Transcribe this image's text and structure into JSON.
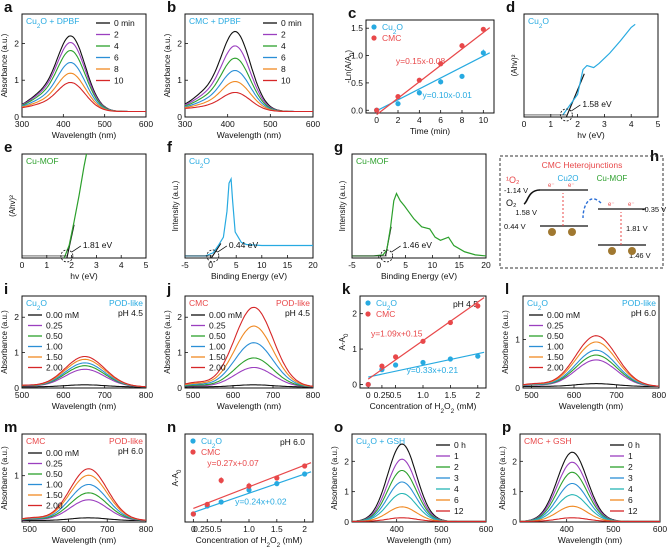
{
  "chart_data": [
    {
      "id": "a",
      "type": "line",
      "title": "Cu2O + DPBF",
      "title_color": "#27aae1",
      "xlabel": "Wavelength (nm)",
      "ylabel": "Absorbance (a.u.)",
      "xlim": [
        300,
        600
      ],
      "ylim": [
        0,
        2.8
      ],
      "xticks": [
        300,
        400,
        500,
        600
      ],
      "yticks": [
        0,
        1,
        2
      ],
      "legend": {
        "position": "top-right",
        "entries": [
          "0 min",
          "2",
          "4",
          "6",
          "8",
          "10"
        ]
      },
      "series": [
        {
          "name": "0 min",
          "color": "#111111",
          "peak": 2.42,
          "base": 0.15
        },
        {
          "name": "2",
          "color": "#9b3fbf",
          "peak": 2.22,
          "base": 0.15
        },
        {
          "name": "4",
          "color": "#2ca02c",
          "peak": 1.98,
          "base": 0.15
        },
        {
          "name": "6",
          "color": "#2b8fd6",
          "peak": 1.62,
          "base": 0.15
        },
        {
          "name": "8",
          "color": "#f08a24",
          "peak": 1.3,
          "base": 0.15
        },
        {
          "name": "10",
          "color": "#d62728",
          "peak": 1.02,
          "base": 0.15
        }
      ],
      "shape": "dpbf"
    },
    {
      "id": "b",
      "type": "line",
      "title": "CMC + DPBF",
      "title_color": "#27aae1",
      "xlabel": "Wavelength (nm)",
      "ylabel": "Absorbance (a.u.)",
      "xlim": [
        300,
        600
      ],
      "ylim": [
        0,
        2.8
      ],
      "xticks": [
        300,
        400,
        500,
        600
      ],
      "yticks": [
        0,
        1,
        2
      ],
      "legend": {
        "position": "top-right",
        "entries": [
          "0 min",
          "2",
          "4",
          "6",
          "8",
          "10"
        ]
      },
      "series": [
        {
          "name": "0 min",
          "color": "#111111",
          "peak": 2.55,
          "base": 0.15
        },
        {
          "name": "2",
          "color": "#9b3fbf",
          "peak": 2.12,
          "base": 0.15
        },
        {
          "name": "4",
          "color": "#2ca02c",
          "peak": 1.75,
          "base": 0.15
        },
        {
          "name": "6",
          "color": "#2b8fd6",
          "peak": 1.38,
          "base": 0.15
        },
        {
          "name": "8",
          "color": "#f08a24",
          "peak": 1.05,
          "base": 0.15
        },
        {
          "name": "10",
          "color": "#d62728",
          "peak": 0.72,
          "base": 0.15
        }
      ],
      "shape": "dpbf"
    },
    {
      "id": "c",
      "type": "scatter",
      "title": "",
      "xlabel": "Time (min)",
      "ylabel": "-Ln(A/A0)",
      "xlim": [
        -1,
        11
      ],
      "ylim": [
        -0.05,
        1.65
      ],
      "xticks": [
        0,
        2,
        4,
        6,
        8,
        10
      ],
      "yticks": [
        0.0,
        0.5,
        1.0,
        1.5
      ],
      "legend": {
        "position": "top-left",
        "entries": [
          "Cu2O",
          "CMC"
        ]
      },
      "series": [
        {
          "name": "Cu2O",
          "color": "#27aae1",
          "x": [
            0,
            2,
            4,
            6,
            8,
            10
          ],
          "y": [
            0.0,
            0.12,
            0.32,
            0.52,
            0.62,
            1.05
          ],
          "err": [
            0.02,
            0.04,
            0.05,
            0.05,
            0.04,
            0.06
          ],
          "fit_text": "y=0.10x-0.01",
          "slope": 0.1,
          "intercept": -0.01
        },
        {
          "name": "CMC",
          "color": "#e8484a",
          "x": [
            0,
            2,
            4,
            6,
            8,
            10
          ],
          "y": [
            0.0,
            0.25,
            0.55,
            0.85,
            1.18,
            1.48
          ],
          "err": [
            0.02,
            0.03,
            0.04,
            0.04,
            0.05,
            0.04
          ],
          "fit_text": "y=0.15x-0.08",
          "slope": 0.15,
          "intercept": -0.08
        }
      ]
    },
    {
      "id": "d",
      "type": "line",
      "title": "Cu2O",
      "title_color": "#27aae1",
      "xlabel": "hv (eV)",
      "ylabel": "(Ahv)²",
      "xlim": [
        0,
        5
      ],
      "ylim": [
        0,
        1
      ],
      "xticks": [
        0,
        1,
        2,
        3,
        4,
        5
      ],
      "yticks": [],
      "annotation": "1.58 eV",
      "intercept_x": 1.58,
      "line_color": "#27aae1"
    },
    {
      "id": "e",
      "type": "line",
      "title": "Cu-MOF",
      "title_color": "#2ca02c",
      "xlabel": "hv (eV)",
      "ylabel": "(Ahv)²",
      "xlim": [
        0,
        5
      ],
      "ylim": [
        0,
        1
      ],
      "xticks": [
        0,
        1,
        2,
        3,
        4,
        5
      ],
      "yticks": [],
      "annotation": "1.81 eV",
      "intercept_x": 1.81,
      "line_color": "#2ca02c"
    },
    {
      "id": "f",
      "type": "line",
      "title": "Cu2O",
      "title_color": "#27aae1",
      "xlabel": "Binding Energy (eV)",
      "ylabel": "Intensity (a.u.)",
      "xlim": [
        -5,
        20
      ],
      "ylim": [
        0,
        1
      ],
      "xticks": [
        -5,
        0,
        5,
        10,
        15,
        20
      ],
      "yticks": [],
      "annotation": "0.44 eV",
      "intercept_x": 0.44,
      "line_color": "#27aae1"
    },
    {
      "id": "g",
      "type": "line",
      "title": "Cu-MOF",
      "title_color": "#2ca02c",
      "xlabel": "Binding Energy (eV)",
      "ylabel": "Intensity (a.u.)",
      "xlim": [
        -5,
        20
      ],
      "ylim": [
        0,
        1
      ],
      "xticks": [
        -5,
        0,
        5,
        10,
        15,
        20
      ],
      "yticks": [],
      "annotation": "1.46 eV",
      "intercept_x": 1.46,
      "line_color": "#2ca02c"
    },
    {
      "id": "i",
      "type": "line",
      "title": "Cu2O",
      "title_color": "#27aae1",
      "tag": "POD-like",
      "tag_color": "#27aae1",
      "ph": "pH 4.5",
      "xlabel": "Wavelength (nm)",
      "ylabel": "Absorbance (a.u.)",
      "xlim": [
        500,
        800
      ],
      "ylim": [
        0,
        2.6
      ],
      "xticks": [
        500,
        600,
        700,
        800
      ],
      "yticks": [
        0,
        1,
        2
      ],
      "legend": {
        "position": "top-left",
        "entries": [
          "0.00 mM",
          "0.25",
          "0.50",
          "1.00",
          "1.50",
          "2.00"
        ]
      },
      "series": [
        {
          "name": "0.00 mM",
          "color": "#111111",
          "peak": 0.06
        },
        {
          "name": "0.25",
          "color": "#9b3fbf",
          "peak": 0.5
        },
        {
          "name": "0.50",
          "color": "#2ca02c",
          "peak": 0.6
        },
        {
          "name": "1.00",
          "color": "#2b8fd6",
          "peak": 0.68
        },
        {
          "name": "1.50",
          "color": "#f08a24",
          "peak": 0.78
        },
        {
          "name": "2.00",
          "color": "#d62728",
          "peak": 0.86
        }
      ],
      "shape": "tmb"
    },
    {
      "id": "j",
      "type": "line",
      "title": "CMC",
      "title_color": "#e8484a",
      "tag": "POD-like",
      "tag_color": "#e8484a",
      "ph": "pH 4.5",
      "xlabel": "Wavelength (nm)",
      "ylabel": "Absorbance (a.u.)",
      "xlim": [
        480,
        800
      ],
      "ylim": [
        0,
        2.6
      ],
      "xticks": [
        500,
        600,
        700,
        800
      ],
      "yticks": [
        0,
        1,
        2
      ],
      "legend": {
        "position": "top-left",
        "entries": [
          "0.00 mM",
          "0.25",
          "0.50",
          "1.00",
          "1.50",
          "2.00"
        ]
      },
      "series": [
        {
          "name": "0.00 mM",
          "color": "#111111",
          "peak": 0.06
        },
        {
          "name": "0.25",
          "color": "#9b3fbf",
          "peak": 0.55
        },
        {
          "name": "0.50",
          "color": "#2ca02c",
          "peak": 0.82
        },
        {
          "name": "1.00",
          "color": "#2b8fd6",
          "peak": 1.25
        },
        {
          "name": "1.50",
          "color": "#f08a24",
          "peak": 1.72
        },
        {
          "name": "2.00",
          "color": "#d62728",
          "peak": 2.25
        }
      ],
      "shape": "tmb"
    },
    {
      "id": "k",
      "type": "scatter",
      "title": "",
      "ph": "pH 4.5",
      "xlabel": "Concentration of H2O2 (mM)",
      "ylabel": "A-A0",
      "xlim": [
        -0.15,
        2.15
      ],
      "ylim": [
        -0.1,
        2.5
      ],
      "xticks": [
        0,
        0.25,
        0.5,
        1.0,
        1.5,
        2
      ],
      "xticklabels": [
        "0",
        "0.25",
        "0.5",
        "1.0",
        "1.5",
        "2"
      ],
      "yticks": [
        0,
        1,
        2
      ],
      "legend": {
        "position": "top-left",
        "entries": [
          "Cu2O",
          "CMC"
        ]
      },
      "series": [
        {
          "name": "Cu2O",
          "color": "#27aae1",
          "x": [
            0,
            0.25,
            0.5,
            1.0,
            1.5,
            2.0
          ],
          "y": [
            0,
            0.42,
            0.55,
            0.62,
            0.72,
            0.8
          ],
          "err": [
            0.02,
            0.04,
            0.04,
            0.05,
            0.05,
            0.04
          ],
          "fit_text": "y=0.33x+0.21",
          "slope": 0.33,
          "intercept": 0.21
        },
        {
          "name": "CMC",
          "color": "#e8484a",
          "x": [
            0,
            0.25,
            0.5,
            1.0,
            1.5,
            2.0
          ],
          "y": [
            0,
            0.52,
            0.78,
            1.22,
            1.75,
            2.22
          ],
          "err": [
            0.02,
            0.05,
            0.06,
            0.07,
            0.07,
            0.08
          ],
          "fit_text": "y=1.09x+0.15",
          "slope": 1.09,
          "intercept": 0.15
        }
      ]
    },
    {
      "id": "l",
      "type": "line",
      "title": "Cu2O",
      "title_color": "#27aae1",
      "tag": "POD-like",
      "tag_color": "#27aae1",
      "ph": "pH 6.0",
      "xlabel": "Wavelength (nm)",
      "ylabel": "Absorbance (a.u.)",
      "xlim": [
        480,
        800
      ],
      "ylim": [
        0,
        1.9
      ],
      "xticks": [
        500,
        600,
        700,
        800
      ],
      "yticks": [
        0,
        1
      ],
      "legend": {
        "position": "top-left",
        "entries": [
          "0.00 mM",
          "0.25",
          "0.50",
          "1.00",
          "1.50",
          "2.00"
        ]
      },
      "series": [
        {
          "name": "0.00 mM",
          "color": "#111111",
          "peak": 0.06
        },
        {
          "name": "0.25",
          "color": "#9b3fbf",
          "peak": 0.55
        },
        {
          "name": "0.50",
          "color": "#2ca02c",
          "peak": 0.65
        },
        {
          "name": "1.00",
          "color": "#2b8fd6",
          "peak": 0.75
        },
        {
          "name": "1.50",
          "color": "#f08a24",
          "peak": 0.92
        },
        {
          "name": "2.00",
          "color": "#d62728",
          "peak": 1.05
        }
      ],
      "shape": "tmb"
    },
    {
      "id": "m",
      "type": "line",
      "title": "CMC",
      "title_color": "#e8484a",
      "tag": "POD-like",
      "tag_color": "#e8484a",
      "ph": "pH 6.0",
      "xlabel": "Wavelength (nm)",
      "ylabel": "Absorbance (a.u.)",
      "xlim": [
        480,
        800
      ],
      "ylim": [
        0,
        1.9
      ],
      "xticks": [
        500,
        600,
        700,
        800
      ],
      "yticks": [
        1
      ],
      "legend": {
        "position": "top-left",
        "entries": [
          "0.00 mM",
          "0.25",
          "0.50",
          "1.00",
          "1.50",
          "2.00"
        ]
      },
      "series": [
        {
          "name": "0.00 mM",
          "color": "#111111",
          "peak": 0.06
        },
        {
          "name": "0.25",
          "color": "#9b3fbf",
          "peak": 0.45
        },
        {
          "name": "0.50",
          "color": "#2ca02c",
          "peak": 0.6
        },
        {
          "name": "1.00",
          "color": "#2b8fd6",
          "peak": 0.78
        },
        {
          "name": "1.50",
          "color": "#f08a24",
          "peak": 0.98
        },
        {
          "name": "2.00",
          "color": "#d62728",
          "peak": 1.12
        }
      ],
      "shape": "tmb"
    },
    {
      "id": "n",
      "type": "scatter",
      "title": "",
      "ph": "pH 6.0",
      "xlabel": "Concentration of H2O2 (mM)",
      "ylabel": "A-A0",
      "xlim": [
        -0.15,
        2.15
      ],
      "ylim": [
        -0.1,
        1.0
      ],
      "xticks": [
        0,
        0.25,
        0.5,
        1.0,
        1.5,
        2
      ],
      "xticklabels": [
        "0",
        "0.250.5",
        "",
        "1.0",
        "1.5",
        "2"
      ],
      "yticks": [],
      "legend": {
        "position": "top-left",
        "entries": [
          "Cu2O",
          "CMC"
        ]
      },
      "series": [
        {
          "name": "Cu2O",
          "color": "#27aae1",
          "x": [
            0,
            0.25,
            0.5,
            1.0,
            1.5,
            2.0
          ],
          "y": [
            0,
            0.1,
            0.15,
            0.3,
            0.38,
            0.5
          ],
          "err": [
            0.01,
            0.02,
            0.02,
            0.03,
            0.03,
            0.02
          ],
          "fit_text": "y=0.24x+0.02",
          "slope": 0.24,
          "intercept": 0.02
        },
        {
          "name": "CMC",
          "color": "#e8484a",
          "x": [
            0,
            0.25,
            0.5,
            1.0,
            1.5,
            2.0
          ],
          "y": [
            0,
            0.12,
            0.42,
            0.35,
            0.45,
            0.6
          ],
          "err": [
            0.01,
            0.03,
            0.04,
            0.04,
            0.03,
            0.03
          ],
          "fit_text": "y=0.27x+0.07",
          "slope": 0.27,
          "intercept": 0.07
        }
      ]
    },
    {
      "id": "o",
      "type": "line",
      "title": "Cu2O + GSH",
      "title_color": "#27aae1",
      "xlabel": "Wavelength (nm)",
      "ylabel": "Absorbance (a.u.)",
      "xlim": [
        300,
        600
      ],
      "ylim": [
        0,
        2.9
      ],
      "xticks": [
        400,
        500,
        600
      ],
      "yticks": [
        0,
        1,
        2
      ],
      "legend": {
        "position": "top-right",
        "entries": [
          "0 h",
          "1",
          "2",
          "3",
          "4",
          "6",
          "12"
        ]
      },
      "series": [
        {
          "name": "0 h",
          "color": "#111111",
          "peak": 2.55
        },
        {
          "name": "1",
          "color": "#9b3fbf",
          "peak": 2.05
        },
        {
          "name": "2",
          "color": "#2ca02c",
          "peak": 1.68
        },
        {
          "name": "3",
          "color": "#2b8fd6",
          "peak": 1.3
        },
        {
          "name": "4",
          "color": "#27b5b5",
          "peak": 0.92
        },
        {
          "name": "6",
          "color": "#f08a24",
          "peak": 0.48
        },
        {
          "name": "12",
          "color": "#d62728",
          "peak": 0.12
        }
      ],
      "shape": "gsh"
    },
    {
      "id": "p",
      "type": "line",
      "title": "CMC + GSH",
      "title_color": "#e8484a",
      "xlabel": "Wavelength (nm)",
      "ylabel": "Absorbance (a.u.)",
      "xlim": [
        300,
        600
      ],
      "ylim": [
        0,
        2.9
      ],
      "xticks": [
        400,
        500,
        600
      ],
      "yticks": [
        0,
        1,
        2
      ],
      "legend": {
        "position": "top-right",
        "entries": [
          "0 h",
          "1",
          "2",
          "3",
          "4",
          "6",
          "12"
        ]
      },
      "series": [
        {
          "name": "0 h",
          "color": "#111111",
          "peak": 2.28
        },
        {
          "name": "1",
          "color": "#9b3fbf",
          "peak": 1.95
        },
        {
          "name": "2",
          "color": "#2ca02c",
          "peak": 1.62
        },
        {
          "name": "3",
          "color": "#2b8fd6",
          "peak": 1.25
        },
        {
          "name": "4",
          "color": "#27b5b5",
          "peak": 0.88
        },
        {
          "name": "6",
          "color": "#f08a24",
          "peak": 0.5
        },
        {
          "name": "12",
          "color": "#d62728",
          "peak": 0.12
        }
      ],
      "shape": "gsh"
    }
  ],
  "schematic": {
    "panel_letter": "h",
    "title": "CMC Heterojunctions",
    "cu2o_label": "Cu2O",
    "mof_label": "Cu-MOF",
    "singlet_o2": "¹O₂",
    "o2": "O₂",
    "cb_cu2o": "-1.14 V",
    "vb_cu2o": "0.44 V",
    "cb_mof": "-0.35 V",
    "vb_mof": "1.46 V",
    "gap_cu2o": "1.58 V",
    "gap_mof": "1.81 V",
    "electron": "e⁻",
    "colors": {
      "title": "#e8484a",
      "cu2o": "#27aae1",
      "mof": "#2ca02c",
      "arrow": "#2b6fd6",
      "level": "#111111"
    }
  }
}
